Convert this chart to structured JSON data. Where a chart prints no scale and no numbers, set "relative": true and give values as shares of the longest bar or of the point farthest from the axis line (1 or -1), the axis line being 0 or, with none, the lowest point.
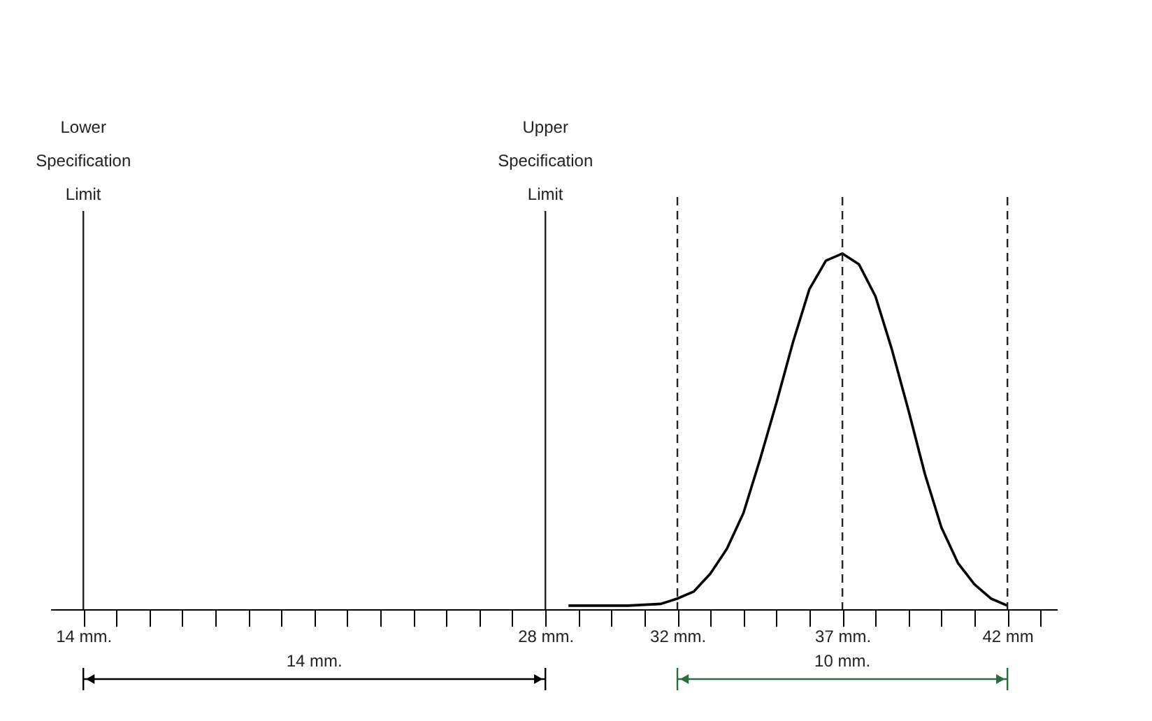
{
  "chart_data": {
    "type": "line",
    "relative": true,
    "grid": false,
    "tick_labels": "x",
    "marker": "none",
    "line_style": "solid",
    "x": [
      28.7,
      29.5,
      30.5,
      31.5,
      32,
      32.5,
      33,
      33.5,
      34,
      34.5,
      35,
      35.5,
      36,
      36.5,
      37,
      37.5,
      38,
      38.5,
      39,
      39.5,
      40,
      40.5,
      41,
      41.5,
      42
    ],
    "series": [
      {
        "color": "#000000",
        "values": [
          0.01,
          0.01,
          0.01,
          0.015,
          0.03,
          0.05,
          0.1,
          0.17,
          0.27,
          0.42,
          0.58,
          0.75,
          0.9,
          0.98,
          1,
          0.97,
          0.88,
          0.73,
          0.56,
          0.38,
          0.23,
          0.13,
          0.07,
          0.03,
          0.01
        ]
      }
    ],
    "xlim": [
      13,
      43.5
    ],
    "xticks": [
      {
        "value": 14,
        "label": "14 mm."
      },
      {
        "value": 15,
        "label": null
      },
      {
        "value": 16,
        "label": null
      },
      {
        "value": 17,
        "label": null
      },
      {
        "value": 18,
        "label": null
      },
      {
        "value": 19,
        "label": null
      },
      {
        "value": 20,
        "label": null
      },
      {
        "value": 21,
        "label": null
      },
      {
        "value": 22,
        "label": null
      },
      {
        "value": 23,
        "label": null
      },
      {
        "value": 24,
        "label": null
      },
      {
        "value": 25,
        "label": null
      },
      {
        "value": 26,
        "label": null
      },
      {
        "value": 27,
        "label": null
      },
      {
        "value": 28,
        "label": "28 mm."
      },
      {
        "value": 29,
        "label": null
      },
      {
        "value": 30,
        "label": null
      },
      {
        "value": 31,
        "label": null
      },
      {
        "value": 32,
        "label": "32 mm."
      },
      {
        "value": 33,
        "label": null
      },
      {
        "value": 34,
        "label": null
      },
      {
        "value": 35,
        "label": null
      },
      {
        "value": 36,
        "label": null
      },
      {
        "value": 37,
        "label": "37 mm."
      },
      {
        "value": 38,
        "label": null
      },
      {
        "value": 39,
        "label": null
      },
      {
        "value": 40,
        "label": null
      },
      {
        "value": 41,
        "label": null
      },
      {
        "value": 42,
        "label": "42 mm"
      },
      {
        "value": 43,
        "label": null
      }
    ],
    "ref_lines": [
      {
        "axis": "x",
        "value": 14,
        "label": "Lower Specification Limit",
        "line_style": "solid"
      },
      {
        "axis": "x",
        "value": 28,
        "label": "Upper Specification Limit",
        "line_style": "solid"
      },
      {
        "axis": "x",
        "value": 32,
        "label": null,
        "line_style": "dashed"
      },
      {
        "axis": "x",
        "value": 37,
        "label": null,
        "line_style": "dashed"
      },
      {
        "axis": "x",
        "value": 42,
        "label": null,
        "line_style": "dashed"
      }
    ],
    "annotations": [
      "14 mm.",
      "10 mm."
    ]
  }
}
